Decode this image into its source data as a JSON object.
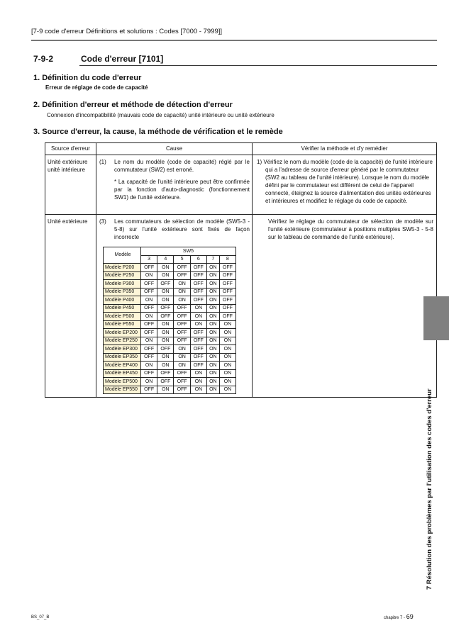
{
  "header": {
    "breadcrumb": "[7-9 code d'erreur Définitions et solutions : Codes [7000 - 7999]]"
  },
  "section": {
    "number": "7-9-2",
    "title": "Code d'erreur [7101]"
  },
  "s1": {
    "title": "1.  Définition du code d'erreur",
    "text": "Erreur de réglage de code de capacité"
  },
  "s2": {
    "title": "2.  Définition d'erreur et méthode de détection d'erreur",
    "text": "Connexion d'incompatibilité (mauvais code de capacité) unité intérieure ou unité extérieure"
  },
  "s3": {
    "title": "3.  Source d'erreur, la cause, la méthode de vérification et le remède"
  },
  "table": {
    "headers": [
      "Source d'erreur",
      "Cause",
      "Vérifier la méthode et d'y remédier"
    ],
    "row1": {
      "source": "Unité extérieure unité intérieure",
      "num": "(1)",
      "cause": "Le nom du modèle (code de capacité) réglé par le commutateur (SW2) est erroné.",
      "note": "* La capacité de l'unité intérieure peut être confirmée par la fonction d'auto-diagnostic (fonctionnement SW1) de l'unité extérieure.",
      "remedy": "1) Vérifiez le nom du modèle (code de la capacité) de l'unité intérieure qui a l'adresse de source d'erreur généré par le commutateur (SW2 au tableau de l'unité intérieure). Lorsque le nom du modèle défini par le commutateur est différent de celui de l'appareil connecté, éteignez la source d'alimentation des unités extérieures et intérieures et modifiez le réglage du code de capacité."
    },
    "row2": {
      "source": "Unité extérieure",
      "num": "(3)",
      "cause": "Les commutateurs de sélection de modèle (SW5-3 - 5-8) sur l'unité extérieure sont fixés de façon incorrecte",
      "remedy": "Vérifiez le réglage du commutateur de sélection de modèle sur l'unité extérieure (commutateur à positions multiples SW5-3 - 5-8 sur le tableau de commande de l'unité extérieure)."
    }
  },
  "sw_table": {
    "model_header": "Modèle",
    "group_header": "SW5",
    "columns": [
      "3",
      "4",
      "5",
      "6",
      "7",
      "8"
    ],
    "rows": [
      {
        "model": "Modèle P200",
        "values": [
          "OFF",
          "ON",
          "OFF",
          "OFF",
          "ON",
          "OFF"
        ]
      },
      {
        "model": "Modèle P250",
        "values": [
          "ON",
          "ON",
          "OFF",
          "OFF",
          "ON",
          "OFF"
        ]
      },
      {
        "model": "Modèle P300",
        "values": [
          "OFF",
          "OFF",
          "ON",
          "OFF",
          "ON",
          "OFF"
        ]
      },
      {
        "model": "Modèle P350",
        "values": [
          "OFF",
          "ON",
          "ON",
          "OFF",
          "ON",
          "OFF"
        ]
      },
      {
        "model": "Modèle P400",
        "values": [
          "ON",
          "ON",
          "ON",
          "OFF",
          "ON",
          "OFF"
        ]
      },
      {
        "model": "Modèle P450",
        "values": [
          "OFF",
          "OFF",
          "OFF",
          "ON",
          "ON",
          "OFF"
        ]
      },
      {
        "model": "Modèle P500",
        "values": [
          "ON",
          "OFF",
          "OFF",
          "ON",
          "ON",
          "OFF"
        ]
      },
      {
        "model": "Modèle P550",
        "values": [
          "OFF",
          "ON",
          "OFF",
          "ON",
          "ON",
          "ON"
        ]
      },
      {
        "model": "Modèle EP200",
        "values": [
          "OFF",
          "ON",
          "OFF",
          "OFF",
          "ON",
          "ON"
        ]
      },
      {
        "model": "Modèle EP250",
        "values": [
          "ON",
          "ON",
          "OFF",
          "OFF",
          "ON",
          "ON"
        ]
      },
      {
        "model": "Modèle EP300",
        "values": [
          "OFF",
          "OFF",
          "ON",
          "OFF",
          "ON",
          "ON"
        ]
      },
      {
        "model": "Modèle EP350",
        "values": [
          "OFF",
          "ON",
          "ON",
          "OFF",
          "ON",
          "ON"
        ]
      },
      {
        "model": "Modèle EP400",
        "values": [
          "ON",
          "ON",
          "ON",
          "OFF",
          "ON",
          "ON"
        ]
      },
      {
        "model": "Modèle EP450",
        "values": [
          "OFF",
          "OFF",
          "OFF",
          "ON",
          "ON",
          "ON"
        ]
      },
      {
        "model": "Modèle EP500",
        "values": [
          "ON",
          "OFF",
          "OFF",
          "ON",
          "ON",
          "ON"
        ]
      },
      {
        "model": "Modèle EP550",
        "values": [
          "OFF",
          "ON",
          "OFF",
          "ON",
          "ON",
          "ON"
        ]
      }
    ]
  },
  "side_tab": {
    "text": "7 Résolution des problèmes par l'utilisation des codes d'erreur",
    "color": "#808080"
  },
  "footer": {
    "doc_code": "BS_07_B",
    "chapter": "chapitre 7 - ",
    "page": "69"
  }
}
